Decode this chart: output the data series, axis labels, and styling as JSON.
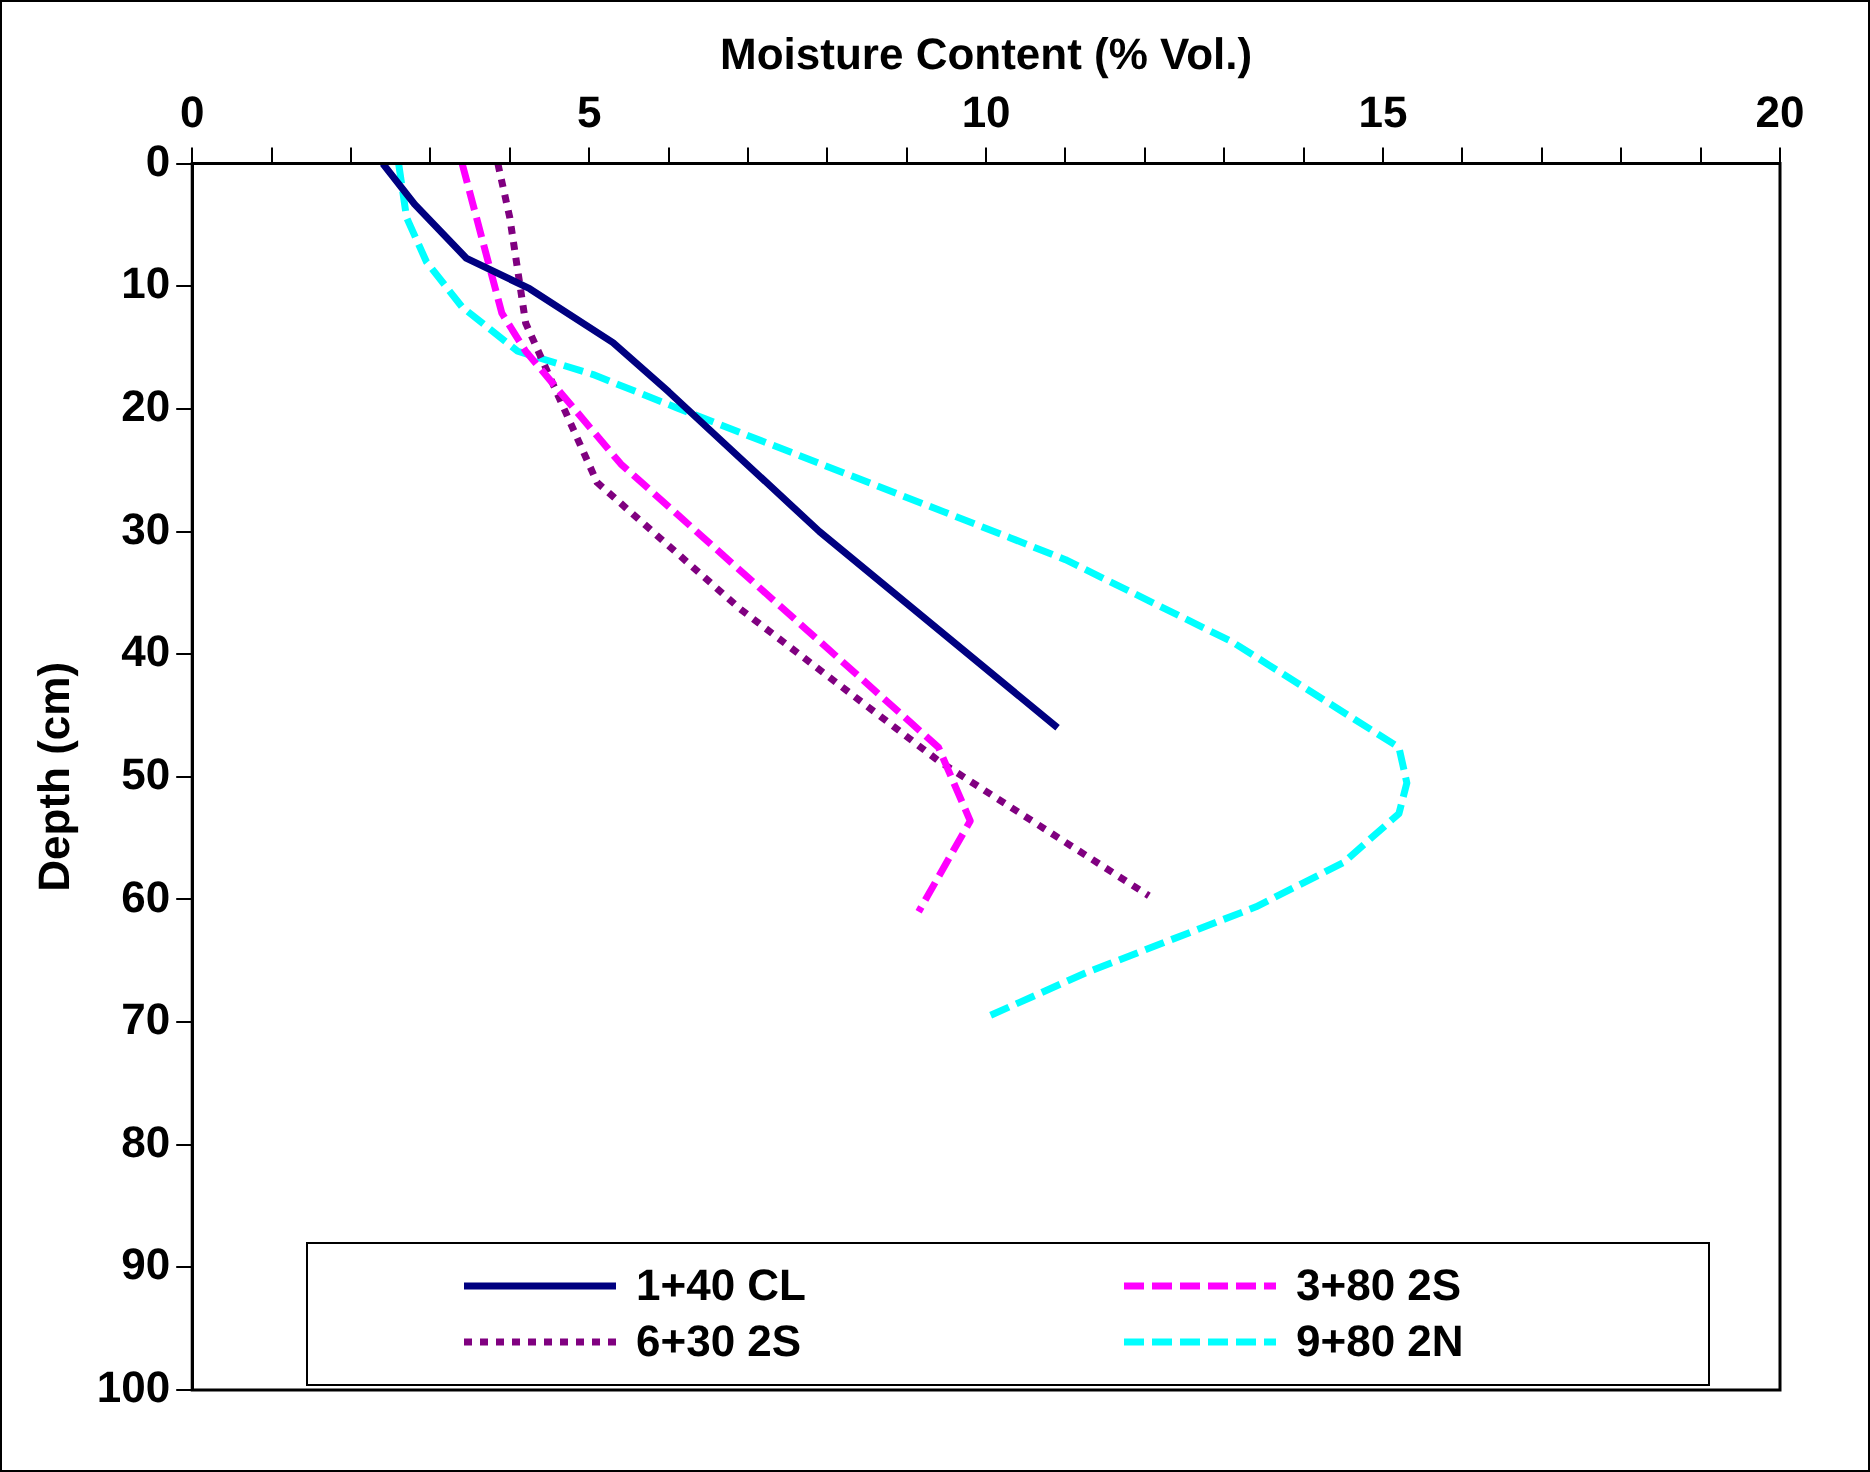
{
  "chart_data": {
    "type": "line",
    "xlabel": "Moisture Content (% Vol.)",
    "ylabel": "Depth (cm)",
    "xlim": [
      0,
      20
    ],
    "xticks": [
      0,
      {
        "value": 1,
        "label": null
      },
      {
        "value": 2,
        "label": null
      },
      {
        "value": 3,
        "label": null
      },
      {
        "value": 4,
        "label": null
      },
      5,
      {
        "value": 6,
        "label": null
      },
      {
        "value": 7,
        "label": null
      },
      {
        "value": 8,
        "label": null
      },
      {
        "value": 9,
        "label": null
      },
      10,
      {
        "value": 11,
        "label": null
      },
      {
        "value": 12,
        "label": null
      },
      {
        "value": 13,
        "label": null
      },
      {
        "value": 14,
        "label": null
      },
      15,
      {
        "value": 16,
        "label": null
      },
      {
        "value": 17,
        "label": null
      },
      {
        "value": 18,
        "label": null
      },
      {
        "value": 19,
        "label": null
      },
      20
    ],
    "ylim": [
      100,
      0
    ],
    "yticks": [
      0,
      10,
      20,
      30,
      40,
      50,
      60,
      70,
      80,
      90,
      100
    ],
    "grid": false,
    "legend": "bottom",
    "marker": "none",
    "series": [
      {
        "name": "1+40 CL",
        "color": "#000080",
        "line_style": "solid",
        "x": [
          2.4,
          2.8,
          3.45,
          4.25,
          5.3,
          6.0,
          7.9,
          10.9
        ],
        "values": [
          0,
          3.3,
          7.7,
          10.2,
          14.6,
          18.6,
          30,
          46
        ]
      },
      {
        "name": "3+80 2S",
        "color": "#ff00ff",
        "line_style": "dashed",
        "x": [
          3.4,
          3.9,
          4.2,
          5.4,
          9.4,
          9.8,
          9.15
        ],
        "values": [
          0,
          12.2,
          15.3,
          24.5,
          47.6,
          53.6,
          61
        ]
      },
      {
        "name": "6+30 2S",
        "color": "#800080",
        "line_style": "dotted",
        "x": [
          3.85,
          4.0,
          4.2,
          5.1,
          6.9,
          9.4,
          12.05
        ],
        "values": [
          0,
          4.4,
          13,
          26,
          36.3,
          48.7,
          59.7
        ]
      },
      {
        "name": "9+80 2N",
        "color": "#00ffff",
        "line_style": "dashed",
        "x": [
          2.6,
          2.7,
          2.95,
          3.4,
          4.1,
          5.05,
          6.1,
          10.3,
          11.0,
          13.1,
          15.2,
          15.3,
          15.2,
          14.5,
          13.4,
          11.25,
          9.97
        ],
        "values": [
          0,
          4.4,
          8,
          11.7,
          15.3,
          17.2,
          19.9,
          30.5,
          32.3,
          39,
          47.6,
          50.5,
          53,
          57,
          60.6,
          66,
          69.7
        ]
      }
    ]
  }
}
